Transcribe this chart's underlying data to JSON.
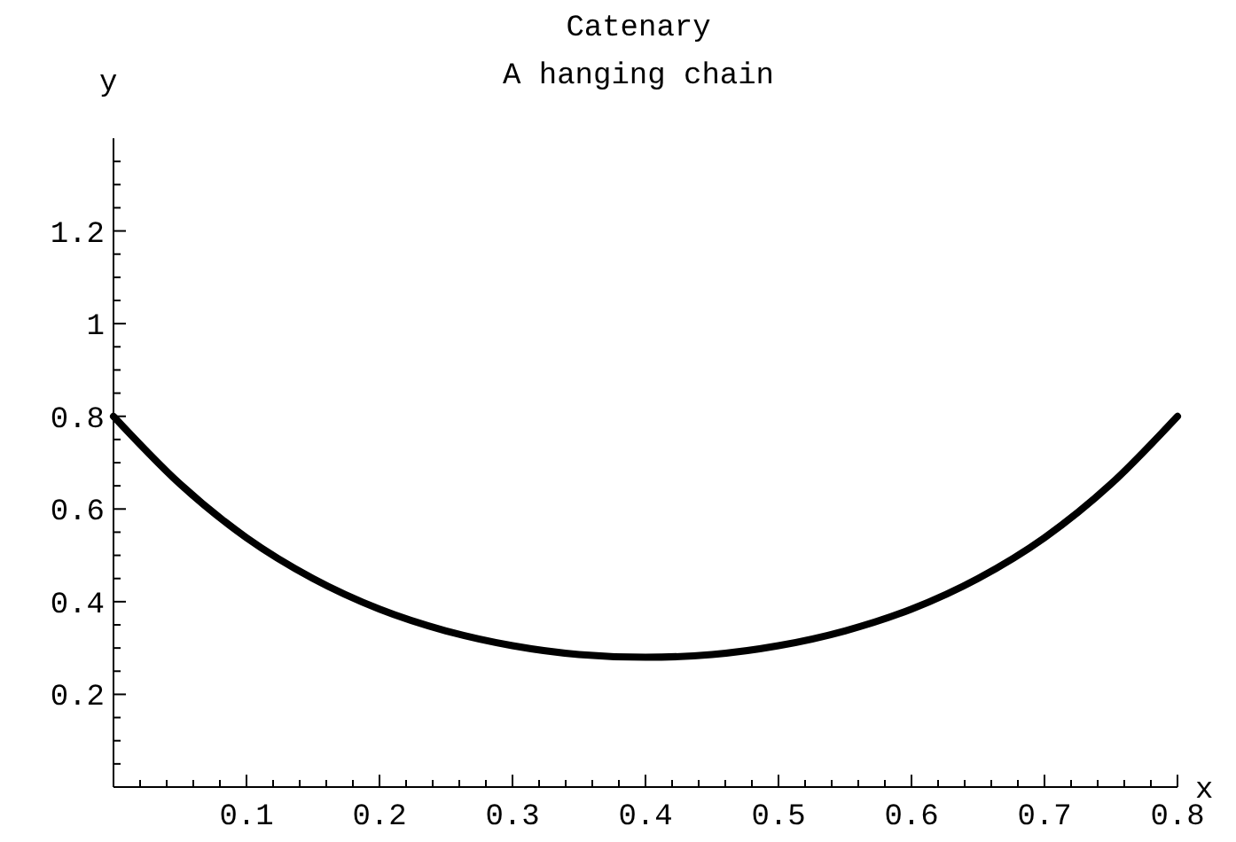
{
  "chart_data": {
    "type": "line",
    "title": "Catenary",
    "subtitle": "A hanging chain",
    "xlabel": "x",
    "ylabel": "y",
    "x": [
      0,
      0.05,
      0.1,
      0.15,
      0.2,
      0.25,
      0.3,
      0.35,
      0.4,
      0.45,
      0.5,
      0.55,
      0.6,
      0.65,
      0.7,
      0.75,
      0.8
    ],
    "series": [
      {
        "color": "#000000",
        "values": [
          0.8,
          0.654,
          0.538,
          0.45,
          0.384,
          0.337,
          0.305,
          0.286,
          0.28,
          0.286,
          0.305,
          0.337,
          0.384,
          0.45,
          0.538,
          0.654,
          0.8
        ]
      }
    ],
    "xlim": [
      0,
      0.8
    ],
    "ylim": [
      0,
      1.4
    ],
    "xticks": [
      {
        "value": 0.02,
        "label": null
      },
      {
        "value": 0.04,
        "label": null
      },
      {
        "value": 0.06,
        "label": null
      },
      {
        "value": 0.08,
        "label": null
      },
      0.1,
      {
        "value": 0.12,
        "label": null
      },
      {
        "value": 0.14,
        "label": null
      },
      {
        "value": 0.16,
        "label": null
      },
      {
        "value": 0.18,
        "label": null
      },
      0.2,
      {
        "value": 0.22,
        "label": null
      },
      {
        "value": 0.24,
        "label": null
      },
      {
        "value": 0.26,
        "label": null
      },
      {
        "value": 0.28,
        "label": null
      },
      0.3,
      {
        "value": 0.32,
        "label": null
      },
      {
        "value": 0.34,
        "label": null
      },
      {
        "value": 0.36,
        "label": null
      },
      {
        "value": 0.38,
        "label": null
      },
      0.4,
      {
        "value": 0.42,
        "label": null
      },
      {
        "value": 0.44,
        "label": null
      },
      {
        "value": 0.46,
        "label": null
      },
      {
        "value": 0.48,
        "label": null
      },
      0.5,
      {
        "value": 0.52,
        "label": null
      },
      {
        "value": 0.54,
        "label": null
      },
      {
        "value": 0.56,
        "label": null
      },
      {
        "value": 0.58,
        "label": null
      },
      0.6,
      {
        "value": 0.62,
        "label": null
      },
      {
        "value": 0.64,
        "label": null
      },
      {
        "value": 0.66,
        "label": null
      },
      {
        "value": 0.68,
        "label": null
      },
      0.7,
      {
        "value": 0.72,
        "label": null
      },
      {
        "value": 0.74,
        "label": null
      },
      {
        "value": 0.76,
        "label": null
      },
      {
        "value": 0.78,
        "label": null
      },
      0.8
    ],
    "yticks": [
      {
        "value": 0.05,
        "label": null
      },
      {
        "value": 0.1,
        "label": null
      },
      {
        "value": 0.15,
        "label": null
      },
      0.2,
      {
        "value": 0.25,
        "label": null
      },
      {
        "value": 0.3,
        "label": null
      },
      {
        "value": 0.35,
        "label": null
      },
      0.4,
      {
        "value": 0.45,
        "label": null
      },
      {
        "value": 0.5,
        "label": null
      },
      {
        "value": 0.55,
        "label": null
      },
      0.6,
      {
        "value": 0.65,
        "label": null
      },
      {
        "value": 0.7,
        "label": null
      },
      {
        "value": 0.75,
        "label": null
      },
      0.8,
      {
        "value": 0.85,
        "label": null
      },
      {
        "value": 0.9,
        "label": null
      },
      {
        "value": 0.95,
        "label": null
      },
      1,
      {
        "value": 1.05,
        "label": null
      },
      {
        "value": 1.1,
        "label": null
      },
      {
        "value": 1.15,
        "label": null
      },
      1.2,
      {
        "value": 1.25,
        "label": null
      },
      {
        "value": 1.3,
        "label": null
      },
      {
        "value": 1.35,
        "label": null
      }
    ],
    "grid": false,
    "marker": "none",
    "line_style": "solid"
  }
}
